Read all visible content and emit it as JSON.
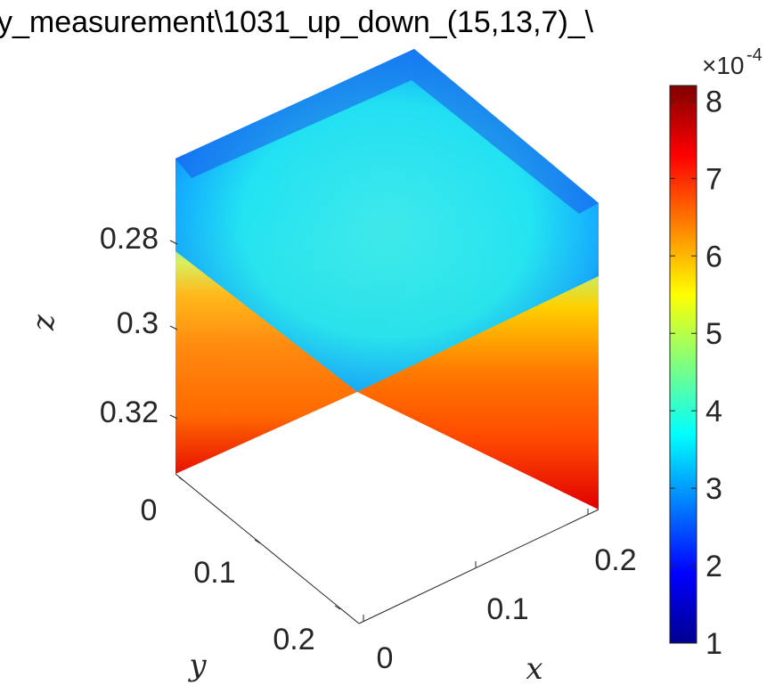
{
  "title": "y_measurement\\1031_up_down_(15,13,7)_\\",
  "chart_data": {
    "type": "heatmap",
    "subtype": "3d-slice",
    "title": "y_measurement\\1031_up_down_(15,13,7)_\\",
    "xlabel": "x",
    "ylabel": "y",
    "zlabel": "z",
    "x_ticks": [
      "0",
      "0.1",
      "0.2"
    ],
    "y_ticks": [
      "0",
      "0.1",
      "0.2"
    ],
    "z_ticks": [
      "0.28",
      "0.3",
      "0.32"
    ],
    "z_reversed": true,
    "colormap": "jet",
    "colorbar": {
      "min": 1,
      "max": 8.2,
      "ticks": [
        "1",
        "2",
        "3",
        "4",
        "5",
        "6",
        "7",
        "8"
      ],
      "exponent_label": "×10",
      "exponent": "-4"
    },
    "slices": [
      {
        "name": "top z-slice",
        "typical_value": 3.6
      },
      {
        "name": "back-left wall (x = 0)",
        "top_value": 2.2,
        "bottom_value": 7.8
      },
      {
        "name": "back-right wall (y = 0)",
        "top_value": 2.6,
        "bottom_value": 7.8
      }
    ]
  }
}
